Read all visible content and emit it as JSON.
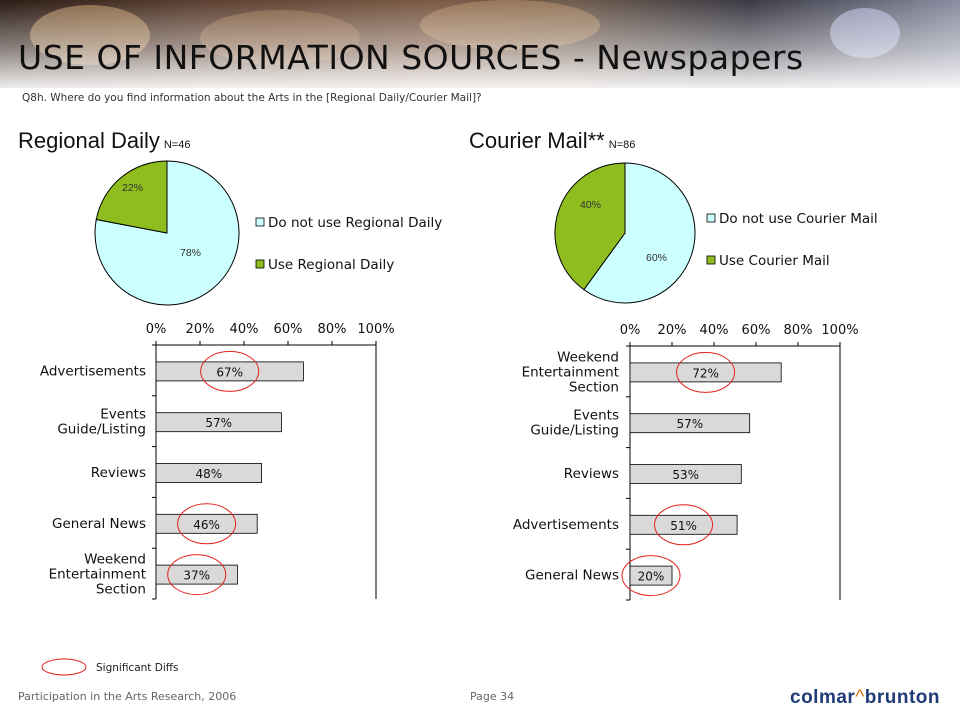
{
  "title": "USE OF INFORMATION SOURCES - Newspapers",
  "question": "Q8h. Where do you find information about the Arts in the [Regional Daily/Courier Mail]?",
  "colors": {
    "light": "#ccffff",
    "green": "#8fbc1e",
    "bar": "#d9d9d9",
    "circle": "#e0231b"
  },
  "footer": {
    "left": "Participation in the Arts Research, 2006",
    "page": "Page 34",
    "logo_left": "colmar",
    "logo_mark": "^",
    "logo_right": "brunton"
  },
  "legend": {
    "sig_label": "Significant Diffs"
  },
  "chart_data": [
    {
      "type": "pie",
      "title": "Regional Daily",
      "n_label": "N=46",
      "slices": [
        {
          "name": "Do not use Regional Daily",
          "value": 78,
          "label": "78%",
          "color": "#ccffff"
        },
        {
          "name": "Use Regional Daily",
          "value": 22,
          "label": "22%",
          "color": "#8fbc1e"
        }
      ]
    },
    {
      "type": "pie",
      "title": "Courier Mail**",
      "n_label": "N=86",
      "slices": [
        {
          "name": "Do not use Courier Mail",
          "value": 60,
          "label": "60%",
          "color": "#ccffff"
        },
        {
          "name": "Use Courier Mail",
          "value": 40,
          "label": "40%",
          "color": "#8fbc1e"
        }
      ]
    },
    {
      "type": "bar",
      "orientation": "horizontal",
      "xlim": [
        0,
        100
      ],
      "ticks": [
        "0%",
        "20%",
        "40%",
        "60%",
        "80%",
        "100%"
      ],
      "categories": [
        "Advertisements",
        "Events Guide/Listing",
        "Reviews",
        "General News",
        "Weekend Entertainment Section"
      ],
      "category_lines": [
        [
          "Advertisements"
        ],
        [
          "Events",
          "Guide/Listing"
        ],
        [
          "Reviews"
        ],
        [
          "General News"
        ],
        [
          "Weekend",
          "Entertainment",
          "Section"
        ]
      ],
      "values": [
        67,
        57,
        48,
        46,
        37
      ],
      "labels": [
        "67%",
        "57%",
        "48%",
        "46%",
        "37%"
      ],
      "significant": [
        true,
        false,
        false,
        true,
        true
      ]
    },
    {
      "type": "bar",
      "orientation": "horizontal",
      "xlim": [
        0,
        100
      ],
      "ticks": [
        "0%",
        "20%",
        "40%",
        "60%",
        "80%",
        "100%"
      ],
      "categories": [
        "Weekend Entertainment Section",
        "Events Guide/Listing",
        "Reviews",
        "Advertisements",
        "General News"
      ],
      "category_lines": [
        [
          "Weekend",
          "Entertainment",
          "Section"
        ],
        [
          "Events",
          "Guide/Listing"
        ],
        [
          "Reviews"
        ],
        [
          "Advertisements"
        ],
        [
          "General News"
        ]
      ],
      "values": [
        72,
        57,
        53,
        51,
        20
      ],
      "labels": [
        "72%",
        "57%",
        "53%",
        "51%",
        "20%"
      ],
      "significant": [
        true,
        false,
        false,
        true,
        true
      ]
    }
  ]
}
